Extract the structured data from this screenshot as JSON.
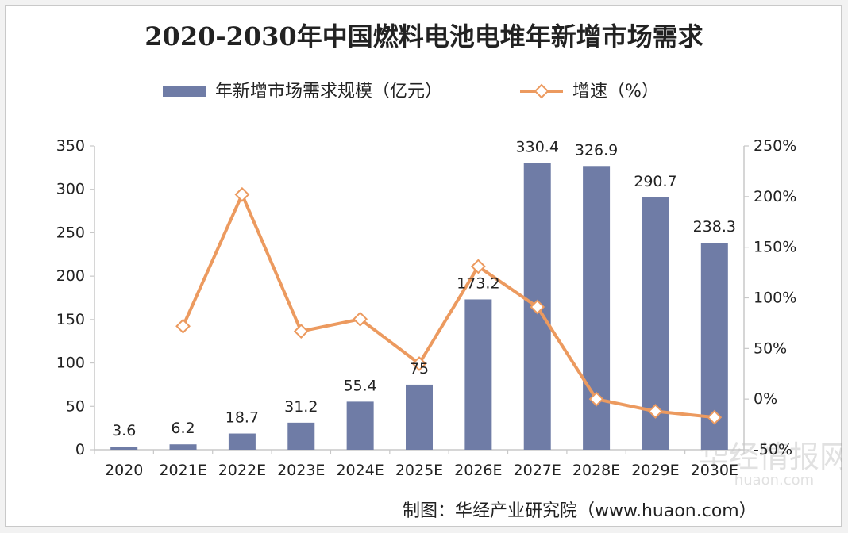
{
  "chart_data": {
    "type": "bar",
    "title": "2020-2030年中国燃料电池电堆年新增市场需求",
    "categories": [
      "2020",
      "2021E",
      "2022E",
      "2023E",
      "2024E",
      "2025E",
      "2026E",
      "2027E",
      "2028E",
      "2029E",
      "2030E"
    ],
    "series": [
      {
        "name": "年新增市场需求规模（亿元）",
        "type": "bar",
        "axis": "left",
        "values": [
          3.6,
          6.2,
          18.7,
          31.2,
          55.4,
          75,
          173.2,
          330.4,
          326.9,
          290.7,
          238.3
        ],
        "data_labels": [
          "3.6",
          "6.2",
          "18.7",
          "31.2",
          "55.4",
          "75",
          "173.2",
          "330.4",
          "326.9",
          "290.7",
          "238.3"
        ],
        "color": "#6f7ca6"
      },
      {
        "name": "增速（%）",
        "type": "line",
        "axis": "right",
        "values": [
          null,
          72,
          202,
          67,
          79,
          35,
          131,
          91,
          0,
          -12,
          -18
        ],
        "color": "#ec9a5f"
      }
    ],
    "y_left": {
      "min": 0,
      "max": 350,
      "ticks": [
        0,
        50,
        100,
        150,
        200,
        250,
        300,
        350
      ],
      "tick_labels": [
        "0",
        "50",
        "100",
        "150",
        "200",
        "250",
        "300",
        "350"
      ]
    },
    "y_right": {
      "min": -50,
      "max": 250,
      "ticks": [
        -50,
        0,
        50,
        100,
        150,
        200,
        250
      ],
      "tick_labels": [
        "-50%",
        "0%",
        "50%",
        "100%",
        "150%",
        "200%",
        "250%"
      ]
    },
    "legend_position": "top",
    "source": "制图：华经产业研究院（www.huaon.com）",
    "watermark": {
      "main": "华经情报网",
      "sub": "huaon.com"
    },
    "colors": {
      "bar": "#6f7ca6",
      "line": "#ec9a5f",
      "marker_fill": "#ffffff"
    }
  }
}
